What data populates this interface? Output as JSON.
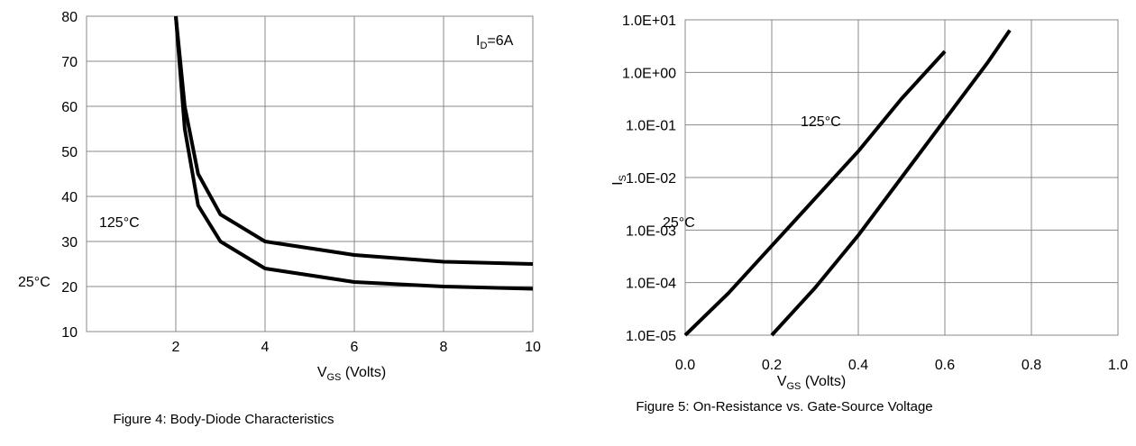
{
  "chart_data": [
    {
      "type": "line",
      "title": "",
      "annotation": "I",
      "annotation_sub": "D",
      "annotation_rest": "=6A",
      "ylabel": "",
      "xlabel_main": "V",
      "xlabel_sub": "GS",
      "xlabel_rest": " (Volts)",
      "caption": "Figure 4: Body-Diode Characteristics",
      "x_ticks": [
        "2",
        "4",
        "6",
        "8",
        "10"
      ],
      "y_ticks": [
        "10",
        "20",
        "30",
        "40",
        "50",
        "60",
        "70",
        "80"
      ],
      "xlim": [
        0,
        10
      ],
      "ylim": [
        10,
        80
      ],
      "grid": true,
      "legend_labels": [
        "125°C",
        "25°C"
      ],
      "series": [
        {
          "name": "125°C",
          "x": [
            2.0,
            2.2,
            2.5,
            3.0,
            4.0,
            6.0,
            8.0,
            10.0
          ],
          "y": [
            80,
            60,
            45,
            36,
            30,
            27,
            25.5,
            25
          ]
        },
        {
          "name": "25°C",
          "x": [
            2.0,
            2.2,
            2.5,
            3.0,
            4.0,
            6.0,
            8.0,
            10.0
          ],
          "y": [
            80,
            55,
            38,
            30,
            24,
            21,
            20,
            19.5
          ]
        }
      ]
    },
    {
      "type": "line",
      "title": "",
      "xlabel_main": "V",
      "xlabel_sub": "GS",
      "xlabel_rest": " (Volts)",
      "ylabel_main": "I",
      "ylabel_sub": "S",
      "caption": "Figure 5: On-Resistance vs. Gate-Source Voltage",
      "x_ticks": [
        "0.0",
        "0.2",
        "0.4",
        "0.6",
        "0.8",
        "1.0"
      ],
      "y_ticks": [
        "1.0E-05",
        "1.0E-04",
        "1.0E-03",
        "1.0E-02",
        "1.0E-01",
        "1.0E+00",
        "1.0E+01"
      ],
      "xlim": [
        0,
        1.0
      ],
      "ylim_log10": [
        -5,
        1
      ],
      "grid": true,
      "legend_labels": [
        "125°C",
        "25°C"
      ],
      "series": [
        {
          "name": "125°C",
          "x": [
            0.0,
            0.1,
            0.2,
            0.3,
            0.4,
            0.5,
            0.6
          ],
          "log10_y": [
            -5.0,
            -4.2,
            -3.3,
            -2.4,
            -1.5,
            -0.5,
            0.4
          ]
        },
        {
          "name": "25°C",
          "x": [
            0.2,
            0.3,
            0.4,
            0.5,
            0.6,
            0.7,
            0.75
          ],
          "log10_y": [
            -5.0,
            -4.1,
            -3.1,
            -2.0,
            -0.9,
            0.2,
            0.8
          ]
        }
      ]
    }
  ]
}
